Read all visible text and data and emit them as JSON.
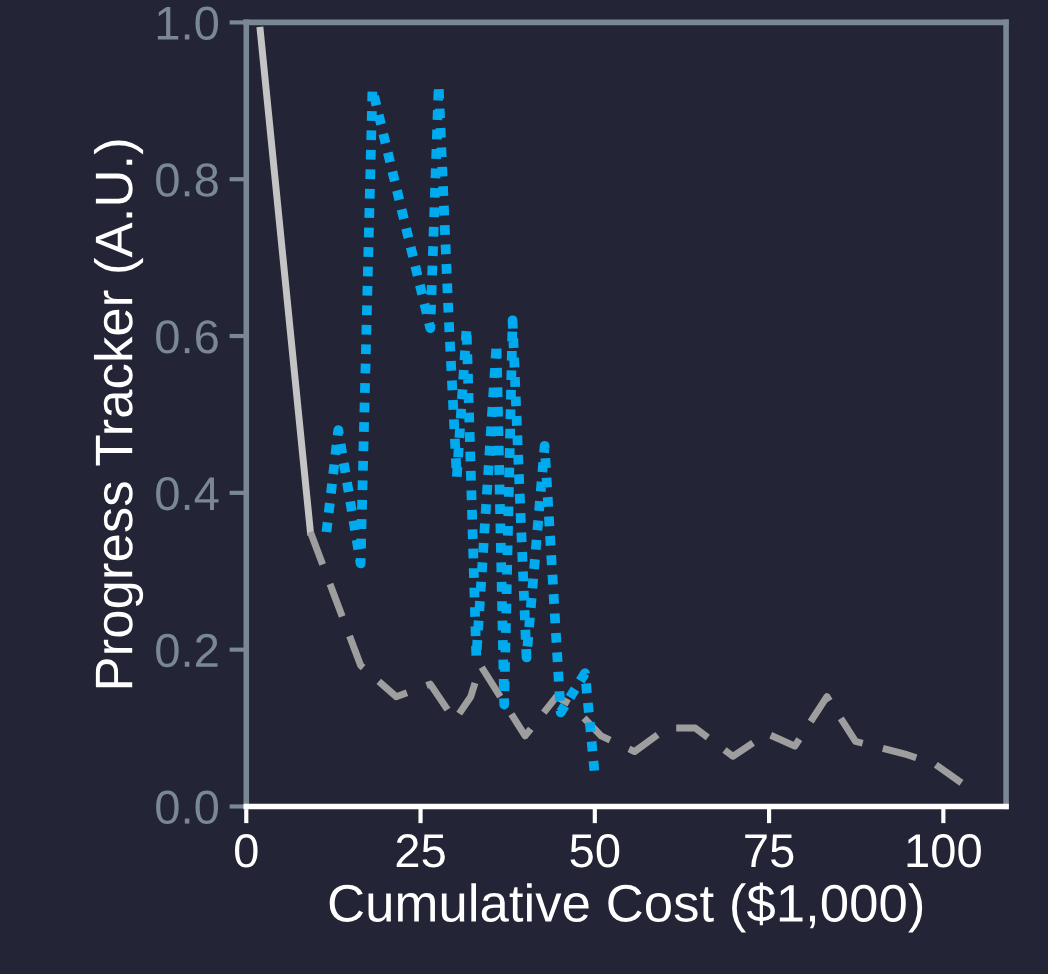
{
  "chart_data": {
    "type": "line",
    "xlabel": "Cumulative Cost ($1,000)",
    "ylabel": "Progress Tracker (A.U.)",
    "xlim": [
      0,
      109
    ],
    "xticks": [
      0,
      25,
      50,
      75,
      100
    ],
    "ylim": [
      0,
      1.0
    ],
    "yticks": [
      {
        "value": 0,
        "label": "0.0"
      },
      0.2,
      0.4,
      0.6,
      0.8,
      {
        "value": 1,
        "label": "1.0"
      }
    ],
    "grid": false,
    "marker": "none",
    "series": [
      {
        "color": "#c4c4c4",
        "line_style": "solid",
        "x": [
          2,
          9.2
        ],
        "values": [
          0.99,
          0.35
        ]
      },
      {
        "color": "#9e9e9e",
        "line_style": "dashed",
        "x": [
          9.2,
          16.4,
          21.5,
          26.4,
          29.9,
          32.2,
          33.6,
          40,
          44.5,
          46.6,
          50.9,
          55.7,
          60.3,
          64.4,
          69.8,
          74.7,
          78.7,
          83.3,
          87.4,
          94.8,
          98.8,
          102.6
        ],
        "values": [
          0.35,
          0.18,
          0.14,
          0.156,
          0.11,
          0.14,
          0.18,
          0.09,
          0.14,
          0.13,
          0.09,
          0.07,
          0.1,
          0.1,
          0.064,
          0.093,
          0.077,
          0.14,
          0.083,
          0.066,
          0.054,
          0.03
        ]
      },
      {
        "color": "#00aaee",
        "line_style": "dotted",
        "x": [
          11.5,
          13.2,
          16.4,
          18.1,
          26.4,
          27.6,
          29,
          30.2,
          31.6,
          33,
          35.9,
          37,
          38.2,
          40.2,
          42.8,
          45.1,
          48.6,
          50
        ],
        "values": [
          0.35,
          0.48,
          0.31,
          0.915,
          0.61,
          0.92,
          0.63,
          0.42,
          0.61,
          0.19,
          0.59,
          0.13,
          0.62,
          0.19,
          0.46,
          0.12,
          0.17,
          0.04
        ]
      }
    ]
  }
}
